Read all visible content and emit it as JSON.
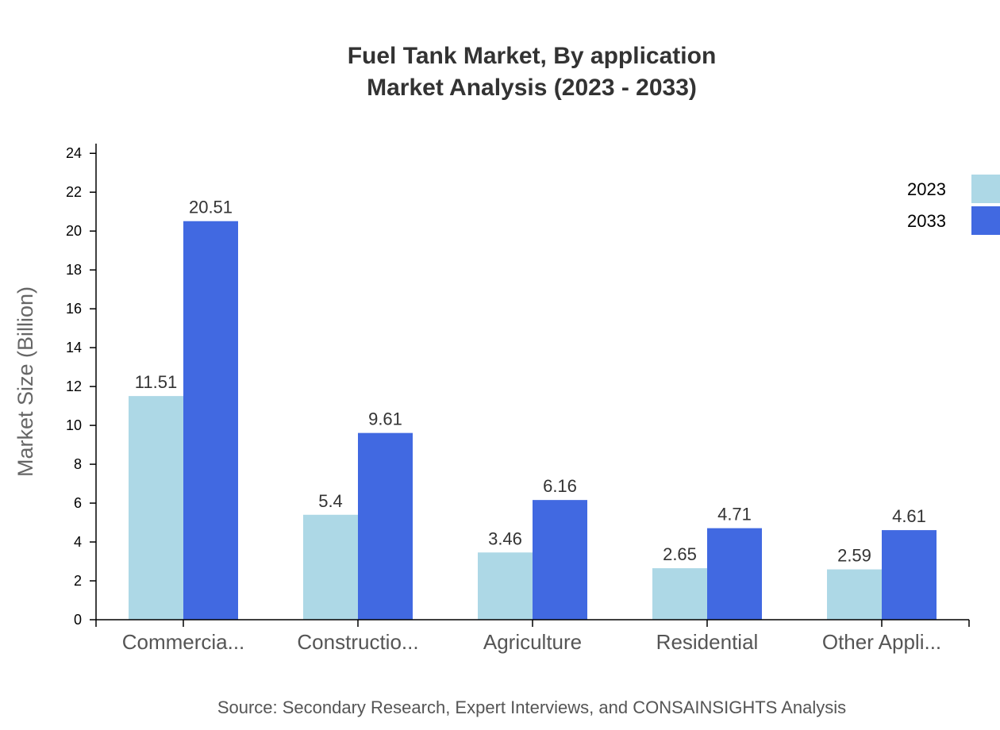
{
  "chart_data": {
    "type": "bar",
    "title": [
      "Fuel Tank Market, By application",
      "Market Analysis (2023 - 2033)"
    ],
    "xlabel": "",
    "ylabel": "Market Size (Billion)",
    "ylim": [
      0,
      24.5
    ],
    "yticks": [
      0,
      2,
      4,
      6,
      8,
      10,
      12,
      14,
      16,
      18,
      20,
      22,
      24
    ],
    "categories": [
      "Commercia...",
      "Constructio...",
      "Agriculture",
      "Residential",
      "Other Appli..."
    ],
    "series": [
      {
        "name": "2023",
        "color": "#add8e6",
        "values": [
          11.51,
          5.4,
          3.46,
          2.65,
          2.59
        ]
      },
      {
        "name": "2033",
        "color": "#4169e1",
        "values": [
          20.51,
          9.61,
          6.16,
          4.71,
          4.61
        ]
      }
    ],
    "legend_position": "top-right",
    "grid": false,
    "source": "Source: Secondary Research, Expert Interviews, and CONSAINSIGHTS Analysis"
  }
}
